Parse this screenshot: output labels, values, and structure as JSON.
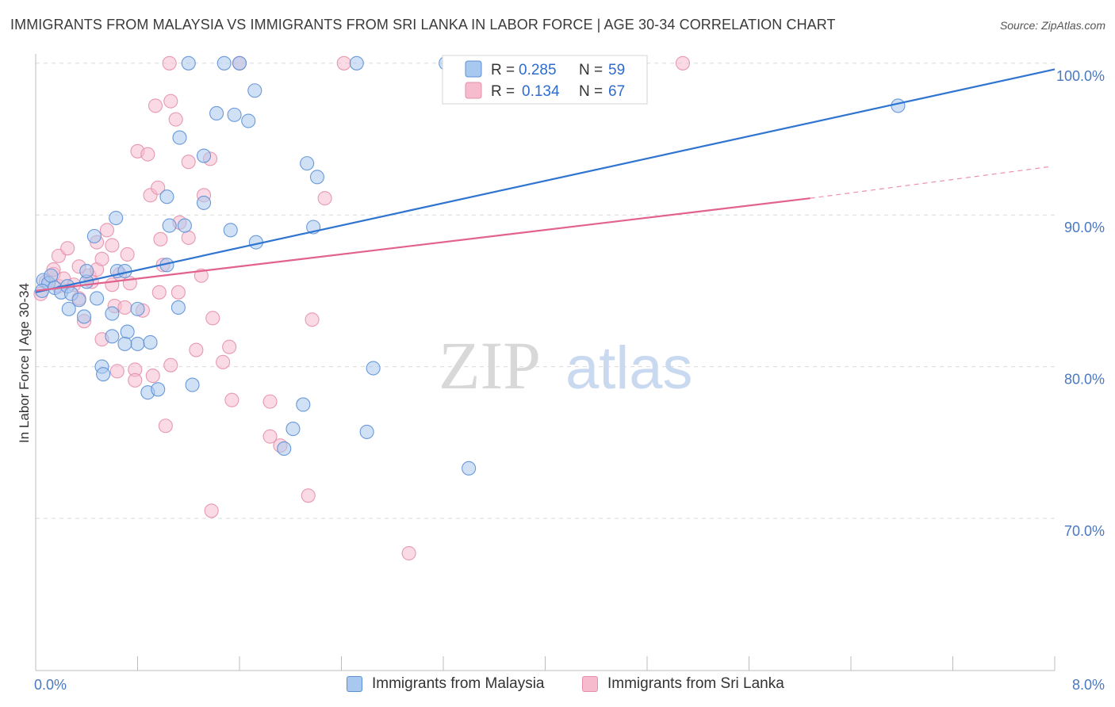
{
  "title": "IMMIGRANTS FROM MALAYSIA VS IMMIGRANTS FROM SRI LANKA IN LABOR FORCE | AGE 30-34 CORRELATION CHART",
  "source": "Source: ZipAtlas.com",
  "watermark": {
    "zip": "ZIP",
    "atlas": "atlas"
  },
  "legend_top": {
    "r_label": "R =",
    "n_label": "N =",
    "rows": [
      {
        "r": "0.285",
        "n": "59"
      },
      {
        "r": "0.134",
        "n": "67"
      }
    ]
  },
  "legend_bottom": {
    "items": [
      "Immigrants from Malaysia",
      "Immigrants from Sri Lanka"
    ]
  },
  "colors": {
    "malaysia_fill": "#a9c8ef",
    "malaysia_stroke": "#5b8fd6",
    "malaysia_line": "#2f74d0",
    "srilanka_fill": "#f6bccd",
    "srilanka_stroke": "#e58fab",
    "srilanka_line": "#e2628c",
    "tick_text": "#4a78c2",
    "grid": "#d9d9d9"
  },
  "chart_data": {
    "type": "scatter",
    "title": "IMMIGRANTS FROM MALAYSIA VS IMMIGRANTS FROM SRI LANKA IN LABOR FORCE | AGE 30-34 CORRELATION CHART",
    "xlabel": "",
    "ylabel": "In Labor Force | Age 30-34",
    "xlim": [
      0,
      8
    ],
    "ylim": [
      61,
      100
    ],
    "x_tick_labels": [
      "0.0%",
      "8.0%"
    ],
    "y_ticks": [
      70,
      80,
      90,
      100
    ],
    "y_tick_labels": [
      "70.0%",
      "80.0%",
      "90.0%",
      "100.0%"
    ],
    "grid": true,
    "legend_position": "top-center",
    "series": [
      {
        "name": "Immigrants from Malaysia",
        "r": 0.285,
        "n": 59,
        "trend": {
          "x": [
            0.0,
            8.0
          ],
          "y": [
            84.9,
            99.6
          ]
        },
        "points": [
          [
            0.06,
            85.7
          ],
          [
            0.1,
            85.5
          ],
          [
            0.12,
            86.0
          ],
          [
            0.05,
            85.0
          ],
          [
            0.15,
            85.2
          ],
          [
            0.2,
            84.9
          ],
          [
            0.25,
            85.3
          ],
          [
            0.28,
            84.8
          ],
          [
            0.34,
            84.4
          ],
          [
            0.4,
            85.6
          ],
          [
            0.48,
            84.5
          ],
          [
            0.26,
            83.8
          ],
          [
            0.4,
            86.3
          ],
          [
            0.38,
            83.3
          ],
          [
            0.6,
            83.5
          ],
          [
            0.46,
            88.6
          ],
          [
            0.64,
            86.3
          ],
          [
            0.7,
            86.3
          ],
          [
            0.8,
            83.8
          ],
          [
            0.72,
            82.3
          ],
          [
            0.6,
            82.0
          ],
          [
            0.8,
            81.5
          ],
          [
            0.9,
            81.6
          ],
          [
            1.12,
            83.9
          ],
          [
            0.7,
            81.5
          ],
          [
            0.52,
            80.0
          ],
          [
            0.53,
            79.5
          ],
          [
            0.88,
            78.3
          ],
          [
            0.96,
            78.5
          ],
          [
            1.23,
            78.8
          ],
          [
            0.63,
            89.8
          ],
          [
            1.03,
            91.2
          ],
          [
            1.05,
            89.3
          ],
          [
            1.17,
            89.3
          ],
          [
            1.32,
            90.8
          ],
          [
            1.13,
            95.1
          ],
          [
            1.32,
            93.9
          ],
          [
            1.42,
            96.7
          ],
          [
            1.56,
            96.6
          ],
          [
            1.67,
            96.2
          ],
          [
            1.03,
            86.7
          ],
          [
            1.53,
            89.0
          ],
          [
            1.73,
            88.2
          ],
          [
            1.72,
            98.2
          ],
          [
            2.13,
            93.4
          ],
          [
            2.21,
            92.5
          ],
          [
            2.18,
            89.2
          ],
          [
            2.1,
            77.5
          ],
          [
            2.02,
            75.9
          ],
          [
            1.95,
            74.6
          ],
          [
            2.65,
            79.9
          ],
          [
            2.6,
            75.7
          ],
          [
            3.4,
            73.3
          ],
          [
            1.2,
            100.0
          ],
          [
            1.48,
            100.0
          ],
          [
            1.6,
            100.0
          ],
          [
            2.52,
            100.0
          ],
          [
            3.22,
            100.0
          ],
          [
            6.77,
            97.2
          ]
        ]
      },
      {
        "name": "Immigrants from Sri Lanka",
        "r": 0.134,
        "n": 67,
        "trend": {
          "x": [
            0.0,
            6.08
          ],
          "y": [
            85.0,
            91.1
          ]
        },
        "trend_dashed": {
          "x": [
            6.08,
            7.98
          ],
          "y": [
            91.1,
            93.2
          ]
        },
        "points": [
          [
            0.04,
            84.8
          ],
          [
            0.08,
            85.6
          ],
          [
            0.14,
            86.1
          ],
          [
            0.18,
            85.3
          ],
          [
            0.22,
            85.8
          ],
          [
            0.14,
            86.4
          ],
          [
            0.18,
            87.3
          ],
          [
            0.25,
            87.8
          ],
          [
            0.3,
            85.4
          ],
          [
            0.34,
            84.5
          ],
          [
            0.34,
            86.6
          ],
          [
            0.42,
            86.0
          ],
          [
            0.44,
            85.6
          ],
          [
            0.48,
            86.4
          ],
          [
            0.48,
            88.2
          ],
          [
            0.52,
            87.1
          ],
          [
            0.56,
            89.0
          ],
          [
            0.6,
            85.4
          ],
          [
            0.66,
            86.1
          ],
          [
            0.72,
            87.4
          ],
          [
            0.74,
            85.5
          ],
          [
            0.38,
            83.0
          ],
          [
            0.52,
            81.8
          ],
          [
            0.62,
            84.0
          ],
          [
            0.7,
            83.9
          ],
          [
            0.84,
            83.7
          ],
          [
            0.64,
            79.7
          ],
          [
            0.78,
            79.8
          ],
          [
            0.78,
            79.1
          ],
          [
            0.92,
            79.4
          ],
          [
            1.06,
            80.1
          ],
          [
            0.97,
            84.9
          ],
          [
            1.12,
            84.9
          ],
          [
            1.0,
            86.7
          ],
          [
            0.98,
            88.4
          ],
          [
            1.13,
            89.5
          ],
          [
            1.2,
            88.5
          ],
          [
            1.3,
            86.0
          ],
          [
            1.39,
            83.2
          ],
          [
            1.26,
            81.1
          ],
          [
            0.8,
            94.2
          ],
          [
            0.88,
            94.0
          ],
          [
            0.9,
            91.3
          ],
          [
            0.96,
            91.8
          ],
          [
            1.06,
            97.5
          ],
          [
            1.1,
            96.3
          ],
          [
            1.2,
            93.5
          ],
          [
            1.32,
            91.3
          ],
          [
            1.37,
            93.7
          ],
          [
            1.52,
            81.3
          ],
          [
            1.47,
            80.3
          ],
          [
            1.54,
            77.8
          ],
          [
            1.84,
            77.7
          ],
          [
            1.84,
            75.4
          ],
          [
            1.92,
            74.8
          ],
          [
            2.17,
            83.1
          ],
          [
            2.27,
            91.1
          ],
          [
            1.02,
            76.1
          ],
          [
            1.38,
            70.5
          ],
          [
            2.14,
            71.5
          ],
          [
            2.93,
            67.7
          ],
          [
            0.94,
            97.2
          ],
          [
            1.05,
            100.0
          ],
          [
            1.6,
            100.0
          ],
          [
            2.42,
            100.0
          ],
          [
            5.08,
            100.0
          ],
          [
            0.6,
            88.0
          ]
        ]
      }
    ]
  }
}
